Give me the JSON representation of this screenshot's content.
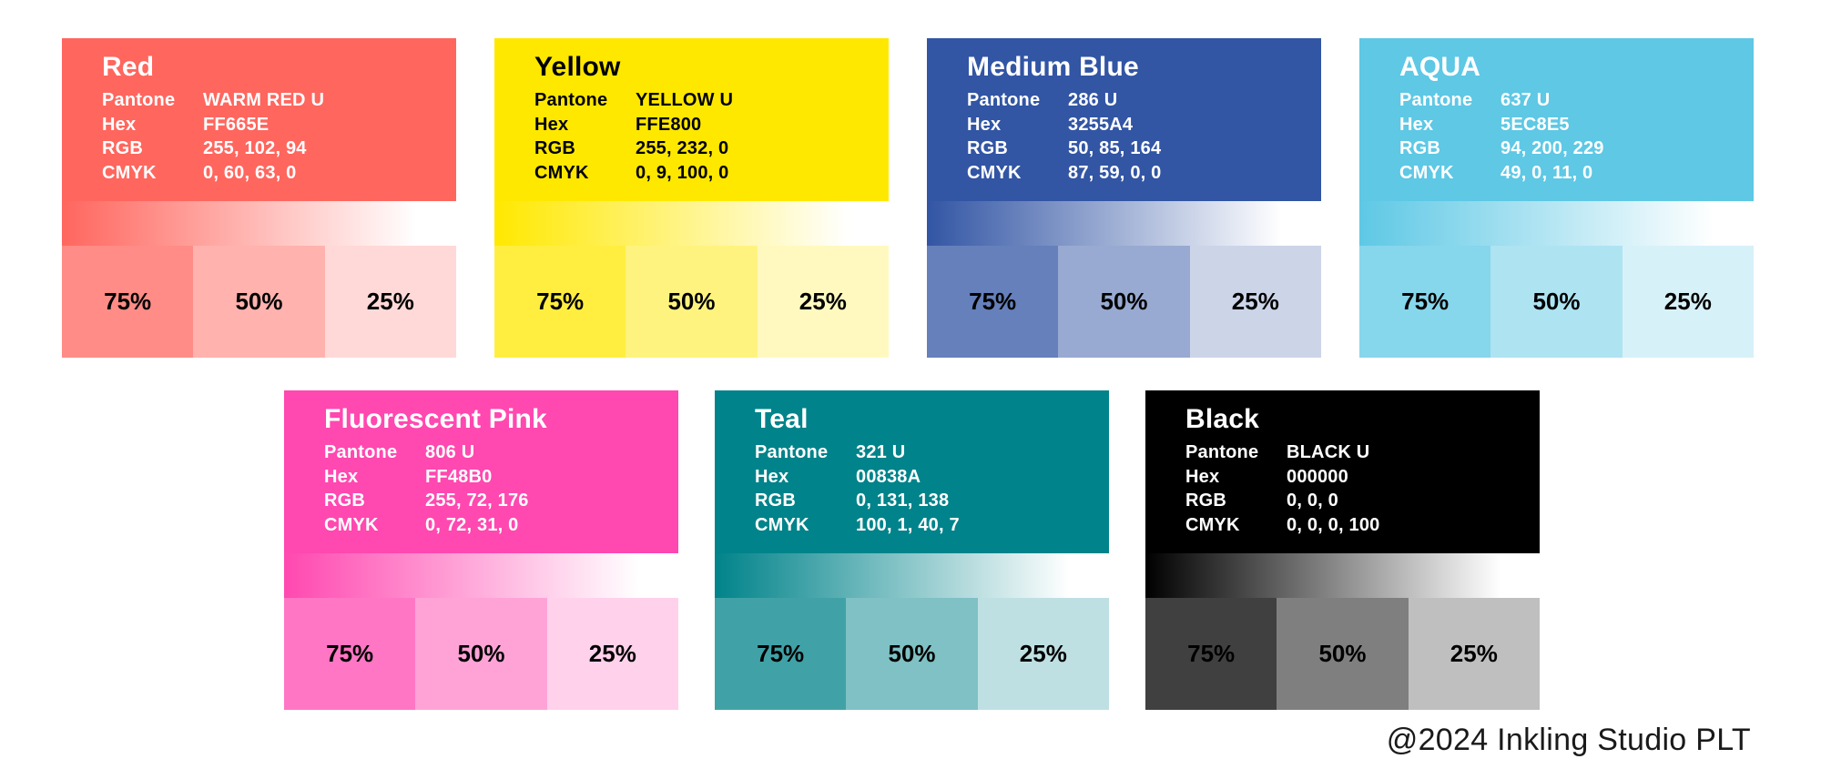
{
  "page": {
    "background": "#ffffff"
  },
  "tints": [
    {
      "label": "75%",
      "alpha": 0.75
    },
    {
      "label": "50%",
      "alpha": 0.5
    },
    {
      "label": "25%",
      "alpha": 0.25
    }
  ],
  "cards": [
    {
      "name": "Red",
      "color": "#FF665E",
      "text_color": "#ffffff",
      "rgb": [
        255,
        102,
        94
      ],
      "row": 0,
      "specs": [
        {
          "label": "Pantone",
          "value": "WARM RED U"
        },
        {
          "label": "Hex",
          "value": "FF665E"
        },
        {
          "label": "RGB",
          "value": "255, 102, 94"
        },
        {
          "label": "CMYK",
          "value": "0, 60, 63, 0"
        }
      ]
    },
    {
      "name": "Yellow",
      "color": "#FFE800",
      "text_color": "#000000",
      "rgb": [
        255,
        232,
        0
      ],
      "row": 0,
      "specs": [
        {
          "label": "Pantone",
          "value": "YELLOW U"
        },
        {
          "label": "Hex",
          "value": "FFE800"
        },
        {
          "label": "RGB",
          "value": "255, 232, 0"
        },
        {
          "label": "CMYK",
          "value": "0, 9, 100, 0"
        }
      ]
    },
    {
      "name": "Medium Blue",
      "color": "#3255A4",
      "text_color": "#ffffff",
      "rgb": [
        50,
        85,
        164
      ],
      "row": 0,
      "specs": [
        {
          "label": "Pantone",
          "value": "286 U"
        },
        {
          "label": "Hex",
          "value": "3255A4"
        },
        {
          "label": "RGB",
          "value": "50, 85, 164"
        },
        {
          "label": "CMYK",
          "value": "87, 59, 0, 0"
        }
      ]
    },
    {
      "name": "AQUA",
      "color": "#5EC8E5",
      "text_color": "#ffffff",
      "rgb": [
        94,
        200,
        229
      ],
      "row": 0,
      "specs": [
        {
          "label": "Pantone",
          "value": "637 U"
        },
        {
          "label": "Hex",
          "value": "5EC8E5"
        },
        {
          "label": "RGB",
          "value": "94, 200, 229"
        },
        {
          "label": "CMYK",
          "value": "49, 0, 11, 0"
        }
      ]
    },
    {
      "name": "Fluorescent Pink",
      "color": "#FF48B0",
      "text_color": "#ffffff",
      "rgb": [
        255,
        72,
        176
      ],
      "row": 1,
      "specs": [
        {
          "label": "Pantone",
          "value": "806 U"
        },
        {
          "label": "Hex",
          "value": "FF48B0"
        },
        {
          "label": "RGB",
          "value": "255, 72, 176"
        },
        {
          "label": "CMYK",
          "value": "0, 72, 31, 0"
        }
      ]
    },
    {
      "name": "Teal",
      "color": "#00838A",
      "text_color": "#ffffff",
      "rgb": [
        0,
        131,
        138
      ],
      "row": 1,
      "specs": [
        {
          "label": "Pantone",
          "value": "321 U"
        },
        {
          "label": "Hex",
          "value": "00838A"
        },
        {
          "label": "RGB",
          "value": "0, 131, 138"
        },
        {
          "label": "CMYK",
          "value": "100, 1, 40, 7"
        }
      ]
    },
    {
      "name": "Black",
      "color": "#000000",
      "text_color": "#ffffff",
      "rgb": [
        0,
        0,
        0
      ],
      "row": 1,
      "specs": [
        {
          "label": "Pantone",
          "value": "BLACK U"
        },
        {
          "label": "Hex",
          "value": "000000"
        },
        {
          "label": "RGB",
          "value": "0, 0, 0"
        },
        {
          "label": "CMYK",
          "value": "0, 0, 0, 100"
        }
      ]
    }
  ],
  "footer": {
    "text": "@2024 Inkling Studio PLT"
  }
}
